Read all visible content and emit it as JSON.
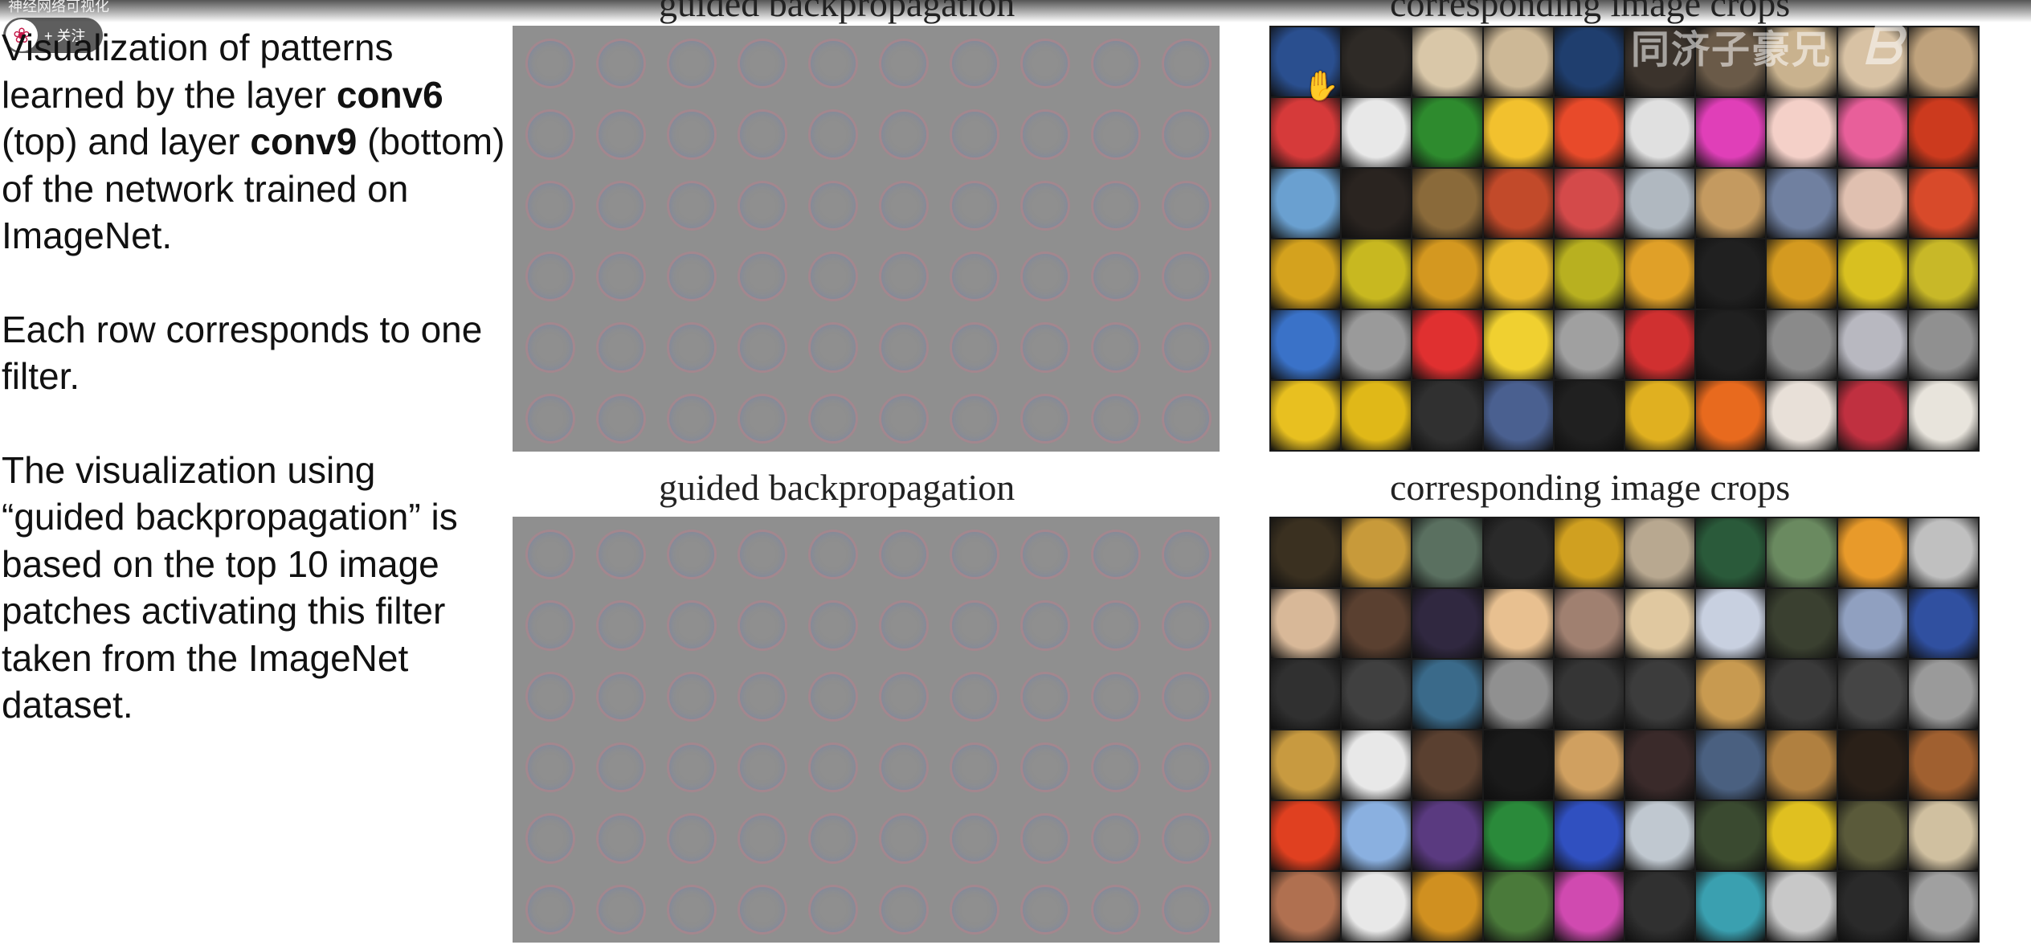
{
  "overlay": {
    "video_title": "神经网络可视化",
    "follow_label": "+ 关注",
    "avatar_icon": "raspberry-icon",
    "watermark_text": "同济子豪兄",
    "watermark_logo": "bilibili"
  },
  "description": {
    "p1_a": "Visualization of patterns learned by the layer ",
    "p1_b": "conv6",
    "p1_c": " (top) and layer ",
    "p1_d": "conv9",
    "p1_e": " (bottom) of the network trained on ImageNet.",
    "p2": "Each row corresponds to one filter.",
    "p3": "The visualization using “guided backpropagation” is based on the top 10 image patches activating this filter taken from the ImageNet dataset."
  },
  "figure": {
    "top_left_title": "guided backpropagation",
    "top_right_title": "corresponding image crops",
    "bottom_left_title": "guided backpropagation",
    "bottom_right_title": "corresponding image crops"
  },
  "top_crops_rows": [
    [
      "#2a4f8f",
      "#2e2a26",
      "#d9c7a8",
      "#cdb896",
      "#1f3e6e",
      "#3b332c",
      "#6a5a48",
      "#c9b28e",
      "#d8c2a4",
      "#bfa27c"
    ],
    [
      "#d63a3a",
      "#e8e8e8",
      "#2e8b2e",
      "#f2c12e",
      "#e84a2a",
      "#e0e0e0",
      "#e03fb8",
      "#f4d0c8",
      "#e85f9a",
      "#cc3a1e"
    ],
    [
      "#6aa0d0",
      "#2a2420",
      "#8a6a3a",
      "#c24a2a",
      "#d44a4a",
      "#b0b8c0",
      "#c49a60",
      "#7080a0",
      "#e0c0b0",
      "#d84a2a"
    ],
    [
      "#d4a21e",
      "#c8b820",
      "#d49820",
      "#e8b82a",
      "#b8b020",
      "#e0a028",
      "#202020",
      "#d49a20",
      "#d8c020",
      "#c8b828"
    ],
    [
      "#3a72c8",
      "#9a9a9a",
      "#e03030",
      "#f0d030",
      "#a0a0a0",
      "#d03030",
      "#202020",
      "#8a8a8a",
      "#b8b8c0",
      "#909090"
    ],
    [
      "#e8c020",
      "#e0b818",
      "#303030",
      "#4a6090",
      "#202020",
      "#e0b020",
      "#e86a1e",
      "#e8e0d8",
      "#c03040",
      "#e8e4dc"
    ]
  ],
  "bottom_crops_rows": [
    [
      "#3a3020",
      "#c89a3a",
      "#5a7060",
      "#2a2a2a",
      "#d0a020",
      "#b8a890",
      "#2a5a3a",
      "#6a8a60",
      "#e89a2a",
      "#c0c0c0"
    ],
    [
      "#d8b898",
      "#5a4030",
      "#302840",
      "#e8c090",
      "#a08070",
      "#e0c8a0",
      "#c8d0e0",
      "#3a4030",
      "#90a0c0",
      "#3050a0"
    ],
    [
      "#303030",
      "#404040",
      "#3a6a8a",
      "#909090",
      "#353535",
      "#3c3c3c",
      "#c89a50",
      "#3a3a3a",
      "#454545",
      "#9a9a9a"
    ],
    [
      "#c89a40",
      "#e8e8e8",
      "#5a4030",
      "#1a1a1a",
      "#d0a060",
      "#3a2a2a",
      "#4a6080",
      "#b08040",
      "#2a2018",
      "#a06030"
    ],
    [
      "#e04020",
      "#8ab0e0",
      "#5a3a80",
      "#2a8a3a",
      "#3050c0",
      "#c0c8d0",
      "#3a4a30",
      "#e0c020",
      "#5a5a3a",
      "#d0c0a0"
    ],
    [
      "#b07050",
      "#e8e8e8",
      "#d09020",
      "#4a7a3a",
      "#d04ab0",
      "#303030",
      "#3aa0b0",
      "#c8c8c8",
      "#2a2a2a",
      "#a0a0a0"
    ]
  ]
}
